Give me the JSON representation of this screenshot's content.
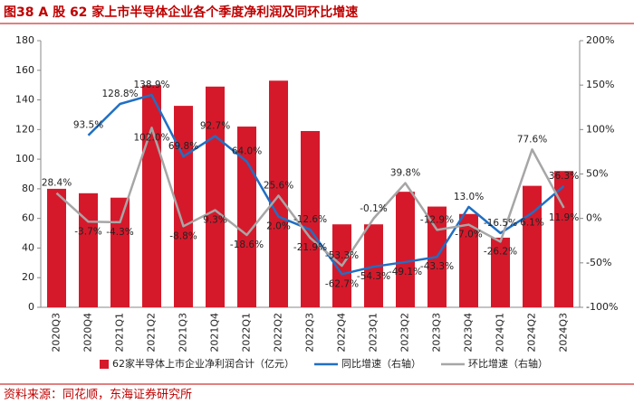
{
  "chart_data": {
    "type": "bar_line",
    "title": "图38  A 股 62 家上市半导体企业各个季度净利润及同环比增速",
    "source": "资料来源：同花顺，东海证券研究所",
    "categories": [
      "2020Q3",
      "2020Q4",
      "2021Q1",
      "2021Q2",
      "2021Q3",
      "2021Q4",
      "2022Q1",
      "2022Q2",
      "2022Q3",
      "2022Q4",
      "2023Q1",
      "2023Q2",
      "2023Q3",
      "2023Q4",
      "2024Q1",
      "2024Q2",
      "2024Q3"
    ],
    "series": [
      {
        "name": "62家半导体上市企业净利润合计（亿元）",
        "type": "bar",
        "color": "#d5192b",
        "values": [
          80,
          77,
          74,
          150,
          136,
          149,
          122,
          153,
          119,
          56,
          56,
          78,
          68,
          63,
          47,
          82,
          92
        ]
      },
      {
        "name": "同比增速（右轴）",
        "type": "line",
        "axis": "y2",
        "color": "#1f6fc4",
        "values": [
          null,
          93.5,
          128.8,
          138.9,
          69.8,
          92.7,
          64.0,
          2.0,
          -12.6,
          -62.7,
          -54.3,
          -49.1,
          -43.3,
          13.0,
          -16.5,
          6.1,
          36.3
        ],
        "value_labels": [
          null,
          "93.5%",
          "128.8%",
          "138.9%",
          "69.8%",
          "92.7%",
          "64.0%",
          "2.0%",
          "-12.6%",
          "-62.7%",
          "-54.3%",
          "-49.1%",
          "-43.3%",
          "13.0%",
          "-16.5%",
          "6.1%",
          "36.3%"
        ]
      },
      {
        "name": "环比增速（右轴）",
        "type": "line",
        "axis": "y2",
        "color": "#a6a6a6",
        "values": [
          28.4,
          -3.7,
          -4.3,
          102.0,
          -8.8,
          9.3,
          -18.6,
          25.6,
          -21.9,
          -53.3,
          -0.1,
          39.8,
          -12.9,
          -7.0,
          -26.2,
          77.6,
          11.9
        ],
        "value_labels": [
          "28.4%",
          "-3.7%",
          "-4.3%",
          "102.0%",
          "-8.8%",
          "9.3%",
          "-18.6%",
          "25.6%",
          "-21.9%",
          "-53.3%",
          "-0.1%",
          "39.8%",
          "-12.9%",
          "-7.0%",
          "-26.2%",
          "77.6%",
          "11.9%"
        ]
      }
    ],
    "ylim": [
      0,
      180
    ],
    "yticks": [
      0,
      20,
      40,
      60,
      80,
      100,
      120,
      140,
      160,
      180
    ],
    "y2lim": [
      -100,
      200
    ],
    "y2ticks": [
      {
        "value": -100,
        "label": "-100%"
      },
      {
        "value": -50,
        "label": "-50%"
      },
      {
        "value": 0,
        "label": "0%"
      },
      {
        "value": 50,
        "label": "50%"
      },
      {
        "value": 100,
        "label": "100%"
      },
      {
        "value": 150,
        "label": "150%"
      },
      {
        "value": 200,
        "label": "200%"
      }
    ],
    "legend": "bottom",
    "grid": false
  }
}
